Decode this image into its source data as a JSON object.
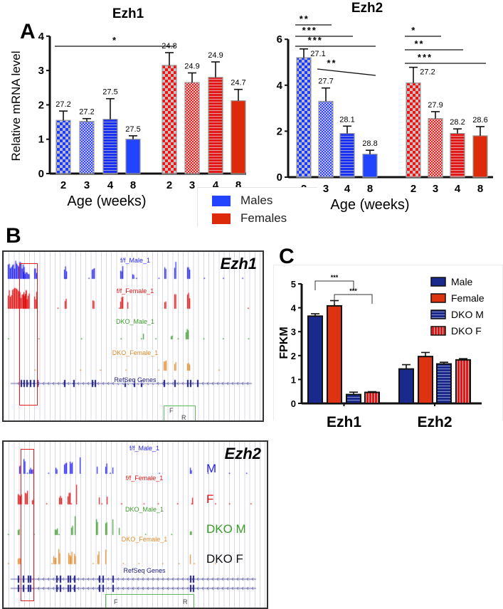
{
  "panel_letters": {
    "a": "A",
    "b": "B",
    "c": "C"
  },
  "legend_a": {
    "items": [
      {
        "label": "Males",
        "color": "#2244ff"
      },
      {
        "label": "Females",
        "color": "#dd2a0a"
      }
    ]
  },
  "chart_data": [
    {
      "id": "a_ezh1",
      "type": "bar",
      "title": "Ezh1",
      "ylabel": "Relative mRNA level",
      "xlabel": "Age (weeks)",
      "ylim": [
        0,
        4
      ],
      "yticks": [
        "0",
        "1",
        "2",
        "3",
        "4"
      ],
      "categories": [
        "2",
        "3",
        "4",
        "8",
        "2",
        "3",
        "4",
        "8"
      ],
      "groups": [
        "Males",
        "Males",
        "Males",
        "Males",
        "Females",
        "Females",
        "Females",
        "Females"
      ],
      "values": [
        1.55,
        1.52,
        1.58,
        1.0,
        3.15,
        2.65,
        2.8,
        2.12
      ],
      "errors": [
        0.27,
        0.08,
        0.6,
        0.1,
        0.37,
        0.28,
        0.45,
        0.33
      ],
      "annotations": [
        "27.2",
        "27.2",
        "27.5",
        "27.5",
        "24.8",
        "24.9",
        "24.9",
        "24.7"
      ],
      "significance": [
        {
          "from": 0,
          "to": 4,
          "label": "*"
        }
      ]
    },
    {
      "id": "a_ezh2",
      "type": "bar",
      "title": "Ezh2",
      "ylabel": "",
      "xlabel": "Age (weeks)",
      "ylim": [
        0,
        6
      ],
      "yticks": [
        "0",
        "2",
        "4",
        "6"
      ],
      "categories": [
        "2",
        "3",
        "4",
        "8",
        "2",
        "3",
        "4",
        "8"
      ],
      "groups": [
        "Males",
        "Males",
        "Males",
        "Males",
        "Females",
        "Females",
        "Females",
        "Females"
      ],
      "values": [
        5.2,
        3.3,
        1.9,
        1.0,
        4.1,
        2.55,
        1.9,
        1.8
      ],
      "errors": [
        0.38,
        0.58,
        0.32,
        0.17,
        0.68,
        0.3,
        0.2,
        0.4
      ],
      "annotations": [
        "27.1",
        "27.7",
        "28.1",
        "28.8",
        "27.2",
        "27.9",
        "28.2",
        "28.6"
      ],
      "significance": [
        {
          "from": 0,
          "to": 1,
          "label": "**"
        },
        {
          "from": 0,
          "to": 2,
          "label": "***"
        },
        {
          "from": 0,
          "to": 3,
          "label": "***"
        },
        {
          "from": 1,
          "to": 3,
          "label": "**"
        },
        {
          "from": 4,
          "to": 5,
          "label": "*"
        },
        {
          "from": 4,
          "to": 6,
          "label": "**"
        },
        {
          "from": 4,
          "to": 7,
          "label": "***"
        }
      ]
    },
    {
      "id": "c_fpkm",
      "type": "bar",
      "title": "",
      "ylabel": "FPKM",
      "xlabel": "",
      "ylim": [
        0,
        5
      ],
      "yticks": [
        "0",
        "1",
        "2",
        "3",
        "4",
        "5"
      ],
      "group_labels": [
        "Ezh1",
        "Ezh2"
      ],
      "legend": [
        "Male",
        "Female",
        "DKO M",
        "DKO F"
      ],
      "series": [
        {
          "name": "Male",
          "values": [
            3.65,
            1.44
          ],
          "errors": [
            0.1,
            0.18
          ],
          "color": "#1a2a8c"
        },
        {
          "name": "Female",
          "values": [
            4.08,
            1.96
          ],
          "errors": [
            0.22,
            0.17
          ],
          "color": "#dd3311"
        },
        {
          "name": "DKO M",
          "values": [
            0.37,
            1.65
          ],
          "errors": [
            0.1,
            0.07
          ],
          "color": "#1a2a8c"
        },
        {
          "name": "DKO F",
          "values": [
            0.46,
            1.82
          ],
          "errors": [
            0.03,
            0.05
          ],
          "color": "#dd3311"
        }
      ],
      "significance": [
        {
          "from": "Male",
          "to": "DKO M",
          "group": "Ezh1",
          "label": "***"
        },
        {
          "from": "Female",
          "to": "DKO F",
          "group": "Ezh1",
          "label": "***"
        }
      ]
    }
  ],
  "browser_ezh1": {
    "gene": "Ezh1",
    "tracks": [
      {
        "label": "f/f_Male_1",
        "color": "#2222ee"
      },
      {
        "label": "f/f_Female_1",
        "color": "#dd1111"
      },
      {
        "label": "DKO_Male_1",
        "color": "#3a9a2a"
      },
      {
        "label": "DKO_Female_1",
        "color": "#e08a2a"
      },
      {
        "label": "RefSeq Genes",
        "color": "#1a1a80"
      }
    ],
    "primers": [
      "F",
      "R"
    ]
  },
  "browser_ezh2": {
    "gene": "Ezh2",
    "tracks": [
      {
        "label": "f/f_Male_1",
        "color": "#2222ee"
      },
      {
        "label": "f/f_Female_1",
        "color": "#dd1111"
      },
      {
        "label": "DKO_Male_1",
        "color": "#3a9a2a"
      },
      {
        "label": "DKO_Female_1",
        "color": "#e08a2a"
      },
      {
        "label": "RefSeq Genes",
        "color": "#1a1a80"
      }
    ],
    "side_labels": [
      {
        "label": "M",
        "color": "#2222ee"
      },
      {
        "label": "F",
        "color": "#dd1111"
      },
      {
        "label": "DKO M",
        "color": "#3a9a2a"
      },
      {
        "label": "DKO F",
        "color": "#111111"
      }
    ],
    "primers": [
      "F",
      "R"
    ]
  }
}
